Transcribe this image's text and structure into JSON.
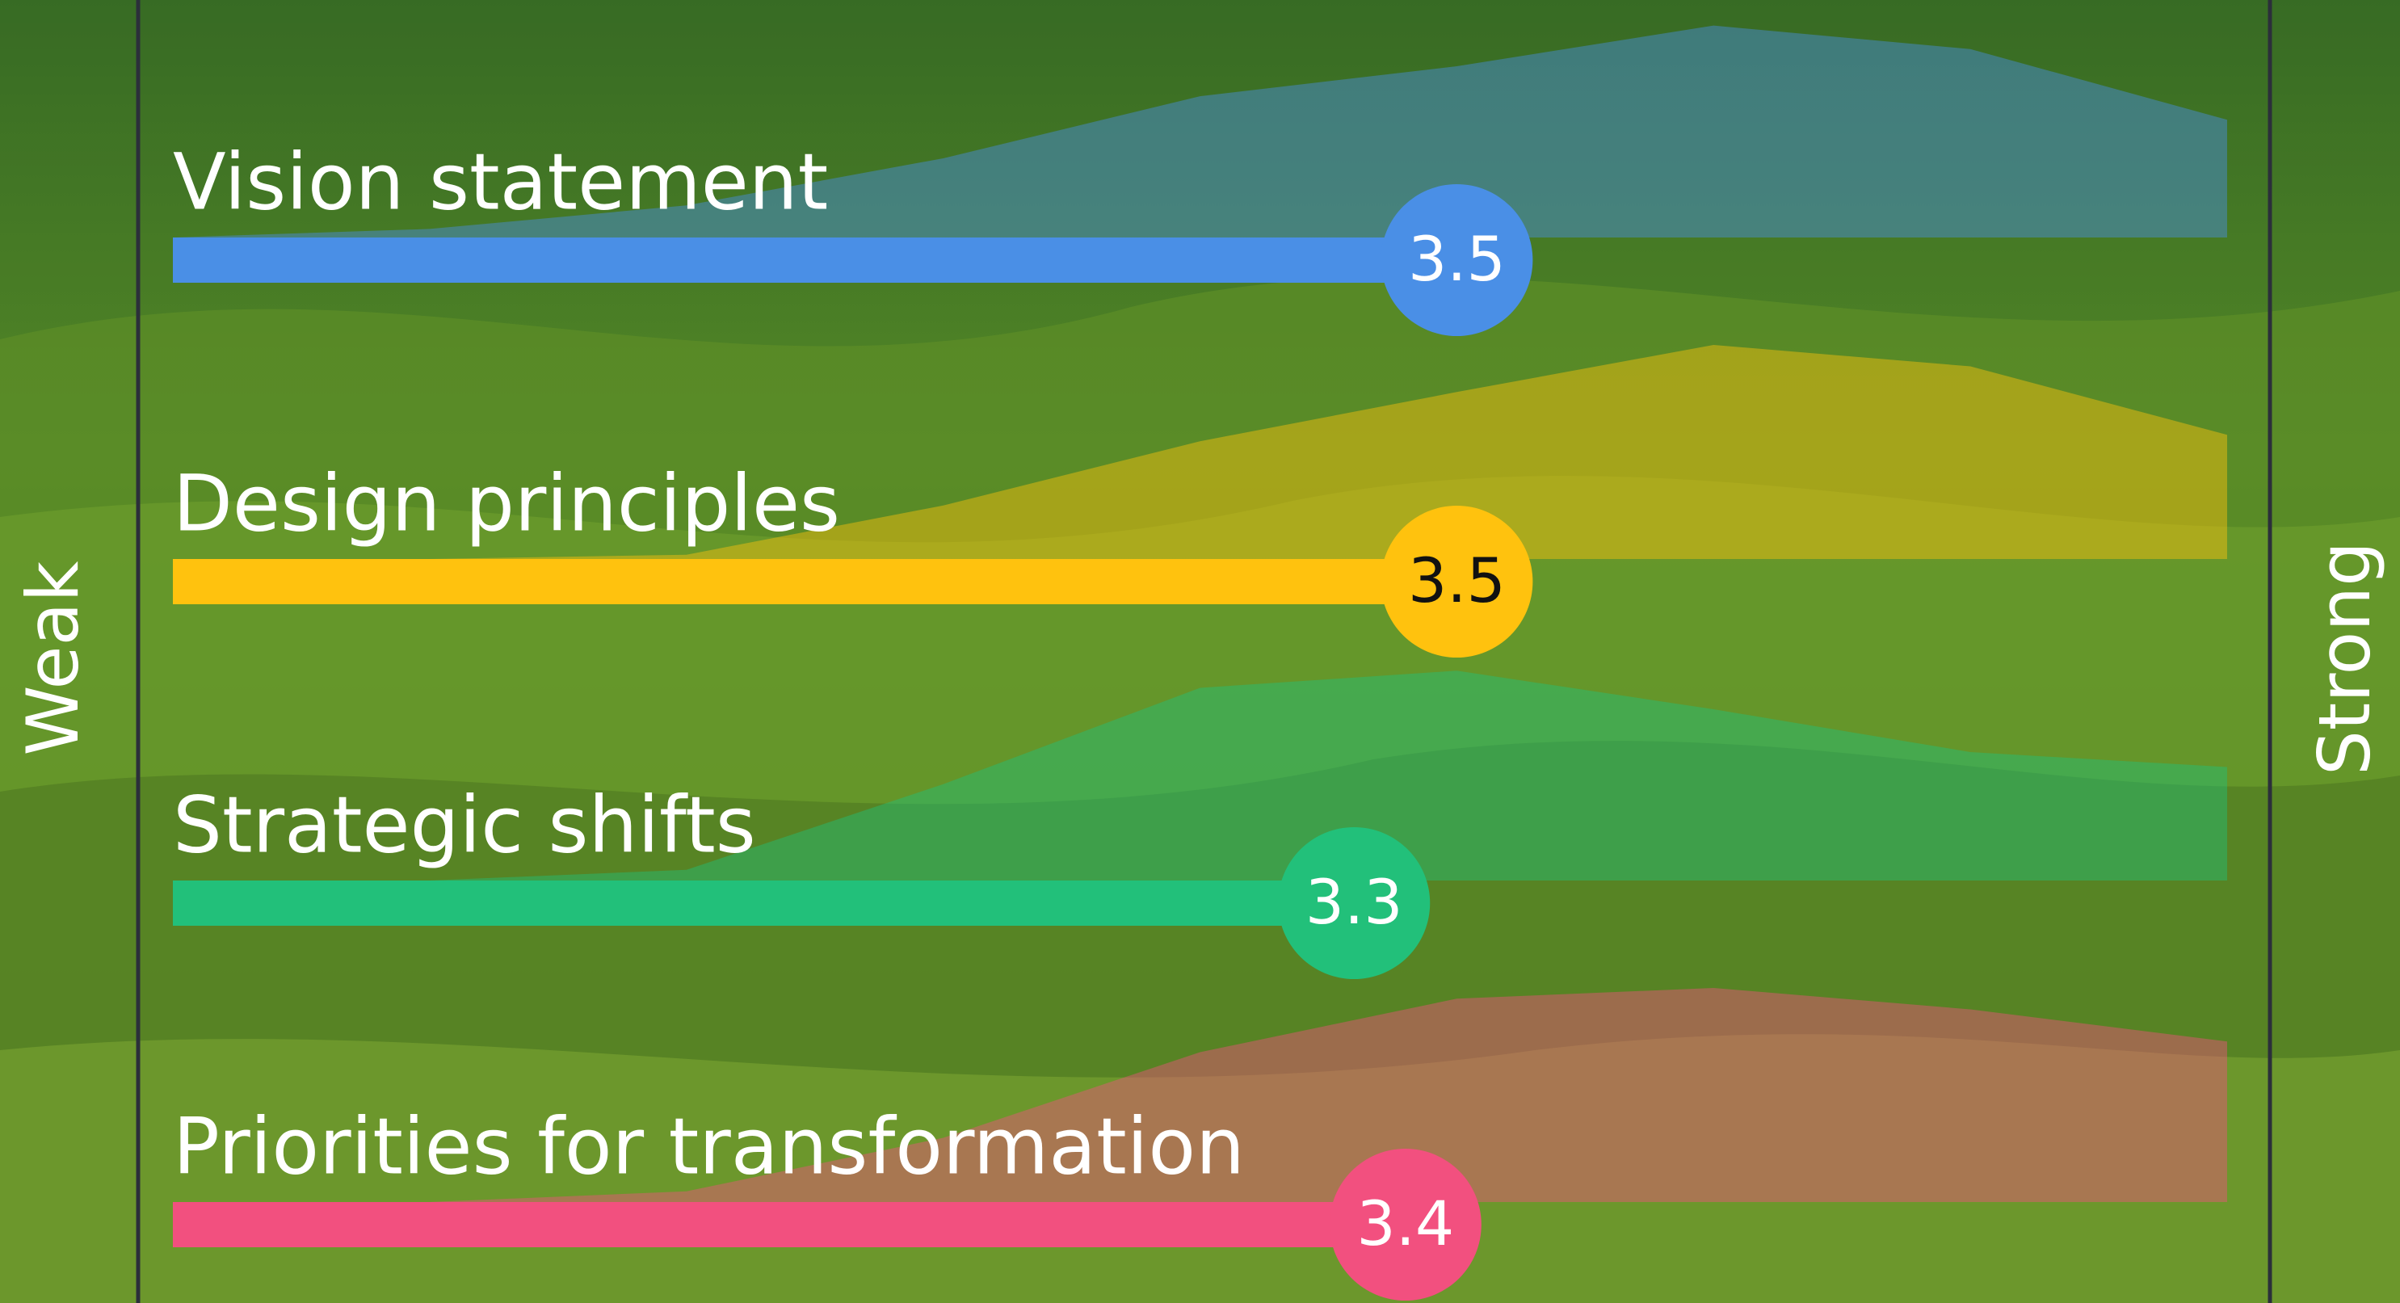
{
  "chart_data": {
    "type": "bar",
    "orientation": "horizontal",
    "categories": [
      "Vision statement",
      "Design principles",
      "Strategic shifts",
      "Priorities for transformation"
    ],
    "values": [
      3.5,
      3.5,
      3.3,
      3.4
    ],
    "colors": [
      "#4a8fe6",
      "#ffc20e",
      "#22c07a",
      "#f2507f"
    ],
    "value_text_colors": [
      "#ffffff",
      "#111111",
      "#ffffff",
      "#ffffff"
    ],
    "xlim": [
      1,
      5
    ],
    "axis_labels": {
      "left": "Weak",
      "right": "Strong"
    },
    "distribution": {
      "x": [
        1,
        1.5,
        2,
        2.5,
        3,
        3.5,
        4,
        4.5,
        5
      ],
      "ylim": [
        0,
        1
      ],
      "series": [
        {
          "values": [
            0,
            0.04,
            0.15,
            0.37,
            0.66,
            0.8,
            0.99,
            0.88,
            0.55
          ]
        },
        {
          "values": [
            0,
            0,
            0.02,
            0.25,
            0.55,
            0.78,
            1,
            0.9,
            0.58
          ]
        },
        {
          "values": [
            0,
            0,
            0.05,
            0.45,
            0.9,
            0.98,
            0.8,
            0.6,
            0.53
          ]
        },
        {
          "values": [
            0,
            0,
            0.05,
            0.3,
            0.7,
            0.95,
            1,
            0.9,
            0.75
          ]
        }
      ]
    }
  }
}
